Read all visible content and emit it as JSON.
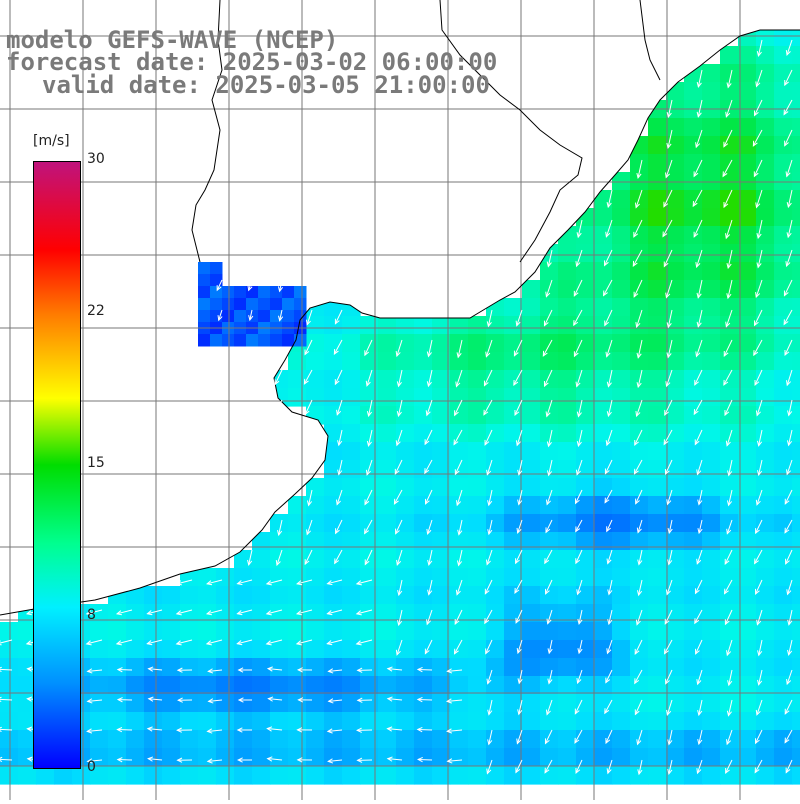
{
  "title": {
    "model": "modelo GEFS-WAVE (NCEP)",
    "forecast": "forecast date: 2025-03-02 06:00:00",
    "valid": "valid date: 2025-03-05 21:00:00"
  },
  "colorbar": {
    "units": "[m/s]",
    "ticks": [
      "30",
      "22",
      "15",
      "8",
      "0"
    ],
    "min": 0,
    "max": 30,
    "colors": [
      "#c0137c",
      "#ff0000",
      "#ff7a00",
      "#ffff00",
      "#00dd00",
      "#00ff90",
      "#00f0ff",
      "#0090ff",
      "#0000ff"
    ]
  },
  "map": {
    "field": "wind speed with direction arrows",
    "grid": true,
    "land_color": "#ffffff",
    "coastline_color": "#000000",
    "grid_color": "#777777",
    "arrow_color": "#ffffff",
    "arrow_direction": "mostly southward / southwestward, westward near the southwest corner"
  }
}
